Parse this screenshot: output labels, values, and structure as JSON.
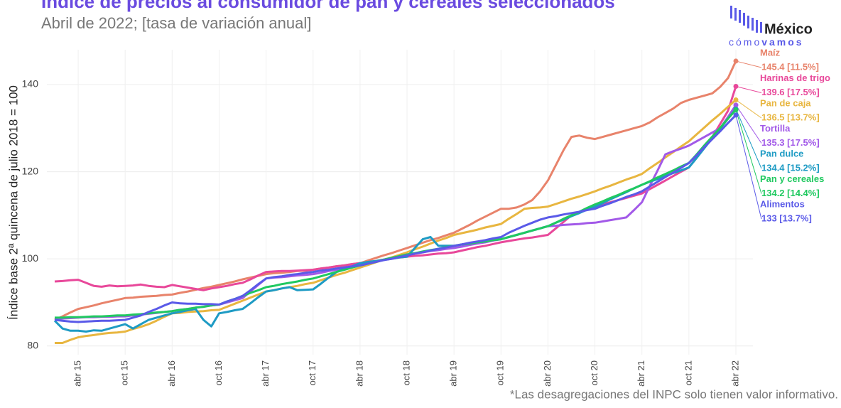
{
  "chart_data": {
    "type": "line",
    "title": "Índice de precios al consumidor de pan y cereales seleccionados",
    "subtitle": "Abril de 2022; [tasa de variación anual]",
    "y_label": "Índice base 2ª quincena de julio 2018 = 100",
    "footnote": "*Las desagregaciones del INPC solo tienen valor informativo.",
    "logo": {
      "name": "México",
      "tagline_light": "cómo",
      "tagline_bold": "vamos"
    },
    "categories": [
      null,
      null,
      null,
      "abr 15",
      null,
      null,
      null,
      null,
      null,
      "oct 15",
      null,
      null,
      null,
      null,
      null,
      "abr 16",
      null,
      null,
      null,
      null,
      null,
      "oct 16",
      null,
      null,
      null,
      null,
      null,
      "abr 17",
      null,
      null,
      null,
      null,
      null,
      "oct 17",
      null,
      null,
      null,
      null,
      null,
      "abr 18",
      null,
      null,
      null,
      null,
      null,
      "oct 18",
      null,
      null,
      null,
      null,
      null,
      "abr 19",
      null,
      null,
      null,
      null,
      null,
      "oct 19",
      null,
      null,
      null,
      null,
      null,
      "abr 20",
      null,
      null,
      null,
      null,
      null,
      "oct 20",
      null,
      null,
      null,
      null,
      null,
      "abr 21",
      null,
      null,
      null,
      null,
      null,
      "oct 21",
      null,
      null,
      null,
      null,
      null,
      "abr 22"
    ],
    "ylim": [
      78,
      148
    ],
    "yticks": [
      80,
      100,
      120,
      140
    ],
    "grid": true,
    "series": [
      {
        "name": "Maíz",
        "color": "#e8836b",
        "end_label": "145.4 [11.5%]",
        "values": [
          86,
          86.8,
          87.7,
          88.5,
          88.9,
          89.3,
          89.8,
          90.2,
          90.6,
          91,
          91.1,
          91.3,
          91.4,
          91.5,
          91.7,
          91.8,
          92.2,
          92.5,
          92.9,
          93.3,
          93.6,
          94,
          94.4,
          94.8,
          95.3,
          95.7,
          96.1,
          96.5,
          96.7,
          96.8,
          97,
          97.2,
          97.3,
          97.5,
          97.8,
          98,
          98.3,
          98.5,
          98.8,
          99,
          99.6,
          100.2,
          100.8,
          101.3,
          101.9,
          102.5,
          103.1,
          103.7,
          104.3,
          104.8,
          105.4,
          106,
          106.9,
          107.8,
          108.8,
          109.7,
          110.6,
          111.5,
          111.5,
          111.8,
          112.5,
          113.5,
          115.5,
          118,
          121.5,
          125,
          128,
          128.3,
          127.8,
          127.5,
          128,
          128.5,
          129,
          129.5,
          130,
          130.5,
          131.3,
          132.5,
          133.5,
          134.5,
          135.8,
          136.5,
          137,
          137.5,
          138,
          139.5,
          141.5,
          145.4
        ]
      },
      {
        "name": "Harinas de trigo",
        "color": "#e8489a",
        "end_label": "139.6 [17.5%]",
        "values": [
          94.8,
          94.9,
          95.1,
          95.2,
          94.5,
          93.8,
          93.6,
          93.9,
          93.7,
          93.8,
          93.9,
          94.1,
          93.8,
          93.6,
          93.5,
          94,
          93.7,
          93.4,
          93.1,
          92.8,
          93.2,
          93.5,
          93.8,
          94.2,
          94.5,
          95.3,
          96.2,
          97,
          97.1,
          97.2,
          97.2,
          97.3,
          97.4,
          97.5,
          97.8,
          98,
          98.3,
          98.5,
          98.8,
          99,
          99.3,
          99.5,
          99.8,
          100,
          100.3,
          100.5,
          100.7,
          100.8,
          101,
          101.2,
          101.3,
          101.5,
          101.9,
          102.3,
          102.7,
          103,
          103.4,
          103.8,
          104.1,
          104.4,
          104.7,
          104.9,
          105.2,
          105.5,
          107,
          108.5,
          110,
          110.7,
          111.3,
          112,
          112.5,
          113,
          113.5,
          114,
          114.5,
          115,
          116,
          117,
          118,
          119,
          120,
          121,
          123.3,
          125.7,
          128,
          131,
          134,
          139.6
        ]
      },
      {
        "name": "Pan de caja",
        "color": "#e8b640",
        "end_label": "136.5 [13.7%]",
        "values": [
          80.7,
          80.7,
          81.4,
          82,
          82.3,
          82.5,
          82.8,
          83,
          83.1,
          83.3,
          83.9,
          84.4,
          85,
          85.8,
          86.7,
          87.5,
          87.6,
          87.8,
          87.9,
          88,
          88.2,
          88.3,
          89,
          89.7,
          90.4,
          91.1,
          91.8,
          92.5,
          92.8,
          93.2,
          93.5,
          93.8,
          94.2,
          94.5,
          95.1,
          95.7,
          96.3,
          96.8,
          97.4,
          98,
          98.6,
          99.2,
          99.8,
          100.3,
          100.9,
          101.5,
          102.2,
          102.8,
          103.5,
          104.2,
          104.8,
          105.5,
          105.9,
          106.3,
          106.7,
          107.2,
          107.6,
          108,
          109.2,
          110.3,
          111.5,
          111.7,
          111.8,
          112,
          112.6,
          113.2,
          113.8,
          114.3,
          114.9,
          115.5,
          116.2,
          116.8,
          117.5,
          118.2,
          118.8,
          119.5,
          120.8,
          122,
          123.3,
          124.5,
          125.8,
          127,
          128.6,
          130.2,
          131.8,
          133.3,
          134.9,
          136.5
        ]
      },
      {
        "name": "Tortilla",
        "color": "#a259e8",
        "end_label": "135.3 [17.5%]",
        "values": [
          86.2,
          86.3,
          86.4,
          86.5,
          86.6,
          86.6,
          86.7,
          86.7,
          86.8,
          86.8,
          87,
          87.2,
          87.4,
          87.6,
          87.8,
          88,
          88.3,
          88.5,
          88.8,
          89,
          89.3,
          89.5,
          90,
          90.5,
          91,
          92.5,
          94,
          95.5,
          95.7,
          95.8,
          96,
          96.2,
          96.3,
          96.5,
          96.8,
          97.2,
          97.5,
          97.8,
          98.2,
          98.5,
          98.9,
          99.3,
          99.8,
          100.2,
          100.6,
          101,
          101.3,
          101.5,
          101.8,
          102,
          102.3,
          102.5,
          102.8,
          103.2,
          103.5,
          103.8,
          104.2,
          104.5,
          105,
          105.5,
          106,
          106.5,
          107,
          107.5,
          107.6,
          107.8,
          107.9,
          108,
          108.2,
          108.3,
          108.6,
          108.9,
          109.2,
          109.5,
          111.2,
          113,
          116.7,
          120.3,
          124,
          124.7,
          125.3,
          126,
          127,
          128,
          129,
          130,
          132.6,
          135.3
        ]
      },
      {
        "name": "Pan dulce",
        "color": "#1e9bc4",
        "end_label": "134.4 [15.2%]",
        "values": [
          85.8,
          84,
          83.5,
          83.5,
          83.3,
          83.6,
          83.5,
          84,
          84.5,
          85,
          84,
          85,
          86,
          86.5,
          87,
          87.5,
          87.8,
          88.2,
          88.5,
          86,
          84.5,
          87.5,
          87.8,
          88.2,
          88.5,
          89.8,
          91.2,
          92.5,
          92.8,
          93.2,
          93.5,
          92.8,
          92.9,
          93,
          94.3,
          95.7,
          97,
          97.7,
          98.3,
          99,
          99.3,
          99.5,
          99.8,
          100,
          100.3,
          100.5,
          102.5,
          104.5,
          105,
          103,
          103,
          103,
          103.3,
          103.5,
          103.8,
          104,
          104.3,
          104.5,
          105,
          105.5,
          106,
          106.5,
          107,
          107.5,
          108.3,
          109,
          109.8,
          110.5,
          111.3,
          112,
          112.8,
          113.7,
          114.5,
          115.3,
          116.2,
          117,
          117.7,
          118.3,
          119,
          119.7,
          120.3,
          121,
          123.2,
          125.5,
          127.7,
          129.9,
          132.2,
          134.4
        ]
      },
      {
        "name": "Pan y cereales",
        "color": "#20c960",
        "end_label": "134.2 [14.4%]",
        "values": [
          86.5,
          86.5,
          86.6,
          86.6,
          86.7,
          86.8,
          86.8,
          86.9,
          87,
          87,
          87.2,
          87.3,
          87.5,
          87.7,
          87.8,
          88,
          88.3,
          88.5,
          88.8,
          89,
          89.3,
          89.5,
          90.2,
          90.8,
          91.5,
          92.2,
          92.8,
          93.5,
          93.8,
          94.2,
          94.5,
          94.8,
          95.2,
          95.5,
          96,
          96.5,
          97,
          97.5,
          98,
          98.5,
          98.9,
          99.3,
          99.8,
          100.2,
          100.6,
          101,
          101.3,
          101.7,
          102,
          102.3,
          102.7,
          103,
          103.3,
          103.5,
          103.8,
          104,
          104.3,
          104.5,
          105,
          105.5,
          106,
          106.5,
          107,
          107.5,
          108.3,
          109.2,
          110,
          110.8,
          111.7,
          112.5,
          113.2,
          114,
          114.7,
          115.5,
          116.2,
          117,
          117.8,
          118.7,
          119.5,
          120.3,
          121.2,
          122,
          124,
          126.1,
          128.1,
          130.1,
          132.2,
          134.2
        ]
      },
      {
        "name": "Alimentos",
        "color": "#5a5ae8",
        "end_label": "133 [13.7%]",
        "values": [
          86,
          85.8,
          85.6,
          85.5,
          85.6,
          85.7,
          85.8,
          85.8,
          85.9,
          86,
          86.5,
          87,
          87.8,
          88.5,
          89.3,
          90,
          89.8,
          89.7,
          89.7,
          89.6,
          89.6,
          89.5,
          90.2,
          90.8,
          91.5,
          92.8,
          94.2,
          95.5,
          95.8,
          96,
          96.3,
          96.5,
          96.8,
          97,
          97.3,
          97.5,
          97.8,
          98,
          98.3,
          98.5,
          98.9,
          99.3,
          99.7,
          100,
          100.4,
          100.8,
          101.2,
          101.5,
          101.9,
          102.3,
          102.6,
          103,
          103.3,
          103.7,
          104,
          104.3,
          104.7,
          105,
          106,
          106.8,
          107.6,
          108.3,
          109,
          109.5,
          109.8,
          110.2,
          110.5,
          110.8,
          111.2,
          111.5,
          112.2,
          112.8,
          113.5,
          114.2,
          114.8,
          115.5,
          116.6,
          117.7,
          118.8,
          119.8,
          120.9,
          122,
          123.8,
          125.7,
          127.5,
          129.3,
          131.2,
          133
        ]
      }
    ]
  }
}
